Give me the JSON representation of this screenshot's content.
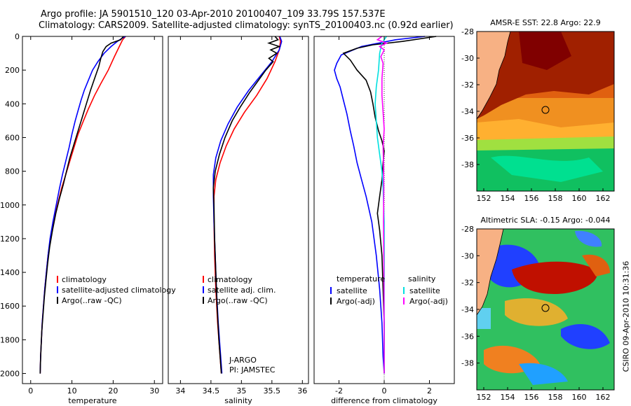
{
  "header": {
    "line1": "Argo profile: JA 5901510_120 03-Apr-2010 20100407_109 33.79S 157.537E",
    "line2": "Climatology: CARS2009. Satellite-adjusted climatology: synTS_20100403.nc (0.92d earlier)"
  },
  "side_label": "CSIRO 09-Apr-2010 10:31:36",
  "chart_data": [
    {
      "id": "temperature",
      "type": "line",
      "xlabel": "temperature",
      "ylabel": "",
      "xlim": [
        -2,
        32
      ],
      "ylim": [
        2060,
        0
      ],
      "xticks": [
        0,
        10,
        20,
        30
      ],
      "yticks": [
        0,
        200,
        400,
        600,
        800,
        1000,
        1200,
        1400,
        1600,
        1800,
        2000
      ],
      "legend": [
        "climatology",
        "satellite-adjusted climatology",
        "Argo(..raw -QC)"
      ],
      "series": [
        {
          "name": "climatology",
          "color": "#ff0000",
          "points": [
            [
              23.0,
              0
            ],
            [
              22.3,
              20
            ],
            [
              21.5,
              60
            ],
            [
              20.3,
              120
            ],
            [
              18.8,
              200
            ],
            [
              17.0,
              280
            ],
            [
              15.5,
              350
            ],
            [
              14.0,
              430
            ],
            [
              12.8,
              500
            ],
            [
              11.5,
              580
            ],
            [
              10.5,
              660
            ],
            [
              9.5,
              740
            ],
            [
              8.5,
              820
            ],
            [
              7.5,
              900
            ],
            [
              6.5,
              1000
            ],
            [
              5.5,
              1100
            ],
            [
              4.8,
              1200
            ],
            [
              4.2,
              1300
            ],
            [
              3.8,
              1400
            ],
            [
              3.4,
              1500
            ],
            [
              3.1,
              1600
            ],
            [
              2.8,
              1700
            ],
            [
              2.6,
              1800
            ],
            [
              2.4,
              1900
            ],
            [
              2.3,
              2000
            ]
          ]
        },
        {
          "name": "satellite-adjusted climatology",
          "color": "#0000ff",
          "points": [
            [
              23.0,
              0
            ],
            [
              22.2,
              10
            ],
            [
              21.0,
              30
            ],
            [
              19.5,
              60
            ],
            [
              17.8,
              100
            ],
            [
              16.3,
              150
            ],
            [
              15.0,
              200
            ],
            [
              14.0,
              260
            ],
            [
              13.0,
              320
            ],
            [
              12.2,
              380
            ],
            [
              11.5,
              440
            ],
            [
              10.8,
              500
            ],
            [
              10.0,
              580
            ],
            [
              9.3,
              660
            ],
            [
              8.5,
              740
            ],
            [
              7.7,
              820
            ],
            [
              7.0,
              900
            ],
            [
              6.2,
              1000
            ],
            [
              5.4,
              1100
            ],
            [
              4.7,
              1200
            ],
            [
              4.2,
              1300
            ],
            [
              3.8,
              1400
            ],
            [
              3.4,
              1500
            ],
            [
              3.1,
              1600
            ],
            [
              2.8,
              1700
            ],
            [
              2.6,
              1800
            ],
            [
              2.4,
              1900
            ],
            [
              2.3,
              2000
            ]
          ]
        },
        {
          "name": "Argo(..raw -QC)",
          "color": "#000000",
          "points": [
            [
              22.5,
              0
            ],
            [
              21.8,
              20
            ],
            [
              19.5,
              40
            ],
            [
              18.3,
              60
            ],
            [
              17.5,
              90
            ],
            [
              17.0,
              130
            ],
            [
              16.5,
              180
            ],
            [
              15.5,
              250
            ],
            [
              14.5,
              320
            ],
            [
              13.5,
              400
            ],
            [
              12.5,
              480
            ],
            [
              11.5,
              560
            ],
            [
              10.5,
              640
            ],
            [
              9.5,
              720
            ],
            [
              8.7,
              800
            ],
            [
              7.9,
              880
            ],
            [
              7.0,
              960
            ],
            [
              6.1,
              1050
            ],
            [
              5.3,
              1150
            ],
            [
              4.6,
              1250
            ],
            [
              4.1,
              1350
            ],
            [
              3.7,
              1450
            ],
            [
              3.3,
              1550
            ],
            [
              3.0,
              1650
            ],
            [
              2.7,
              1750
            ],
            [
              2.5,
              1850
            ],
            [
              2.35,
              1950
            ],
            [
              2.3,
              2000
            ]
          ]
        }
      ]
    },
    {
      "id": "salinity",
      "type": "line",
      "xlabel": "salinity",
      "ylabel": "",
      "xlim": [
        33.8,
        36.1
      ],
      "ylim": [
        2060,
        0
      ],
      "xticks": [
        34,
        34.5,
        35,
        35.5,
        36
      ],
      "yticks": [],
      "legend": [
        "climatology",
        "satellite adj. clim.",
        "Argo(..raw -QC)"
      ],
      "annotations": [
        "J-ARGO",
        "PI: JAMSTEC"
      ],
      "series": [
        {
          "name": "climatology",
          "color": "#ff0000",
          "points": [
            [
              35.62,
              0
            ],
            [
              35.64,
              30
            ],
            [
              35.62,
              80
            ],
            [
              35.55,
              150
            ],
            [
              35.42,
              250
            ],
            [
              35.25,
              350
            ],
            [
              35.05,
              450
            ],
            [
              34.88,
              550
            ],
            [
              34.75,
              650
            ],
            [
              34.65,
              750
            ],
            [
              34.58,
              850
            ],
            [
              34.55,
              950
            ],
            [
              34.55,
              1100
            ],
            [
              34.56,
              1300
            ],
            [
              34.58,
              1500
            ],
            [
              34.61,
              1700
            ],
            [
              34.64,
              1850
            ],
            [
              34.67,
              2000
            ]
          ]
        },
        {
          "name": "satellite adj. clim.",
          "color": "#0000ff",
          "points": [
            [
              35.63,
              0
            ],
            [
              35.66,
              30
            ],
            [
              35.62,
              80
            ],
            [
              35.5,
              150
            ],
            [
              35.32,
              230
            ],
            [
              35.12,
              320
            ],
            [
              34.93,
              420
            ],
            [
              34.78,
              520
            ],
            [
              34.66,
              620
            ],
            [
              34.58,
              720
            ],
            [
              34.54,
              820
            ],
            [
              34.54,
              950
            ],
            [
              34.55,
              1100
            ],
            [
              34.57,
              1300
            ],
            [
              34.59,
              1500
            ],
            [
              34.62,
              1700
            ],
            [
              34.65,
              1850
            ],
            [
              34.68,
              2000
            ]
          ]
        },
        {
          "name": "Argo(..raw -QC)",
          "color": "#000000",
          "points": [
            [
              35.55,
              0
            ],
            [
              35.6,
              20
            ],
            [
              35.45,
              40
            ],
            [
              35.62,
              60
            ],
            [
              35.48,
              80
            ],
            [
              35.58,
              100
            ],
            [
              35.45,
              130
            ],
            [
              35.52,
              150
            ],
            [
              35.4,
              200
            ],
            [
              35.28,
              260
            ],
            [
              35.14,
              330
            ],
            [
              34.98,
              420
            ],
            [
              34.85,
              500
            ],
            [
              34.73,
              600
            ],
            [
              34.64,
              700
            ],
            [
              34.57,
              800
            ],
            [
              34.54,
              900
            ],
            [
              34.55,
              1000
            ],
            [
              34.56,
              1200
            ],
            [
              34.58,
              1400
            ],
            [
              34.6,
              1600
            ],
            [
              34.63,
              1800
            ],
            [
              34.67,
              2000
            ]
          ]
        }
      ]
    },
    {
      "id": "difference",
      "type": "line",
      "xlabel": "difference from climatology",
      "ylabel": "",
      "xlim": [
        -3.1,
        3.1
      ],
      "ylim": [
        2060,
        0
      ],
      "xticks": [
        -2,
        0,
        2
      ],
      "yticks": [],
      "legend_headers": [
        "temperature",
        "salinity"
      ],
      "legend": [
        "satellite",
        "Argo(-adj)",
        "satellite",
        "Argo(-adj)"
      ],
      "series": [
        {
          "name": "temperature satellite",
          "color": "#0000ff",
          "points": [
            [
              1.8,
              0
            ],
            [
              0.5,
              20
            ],
            [
              -1.0,
              60
            ],
            [
              -1.9,
              110
            ],
            [
              -2.1,
              160
            ],
            [
              -2.2,
              200
            ],
            [
              -2.1,
              250
            ],
            [
              -1.95,
              300
            ],
            [
              -1.8,
              380
            ],
            [
              -1.65,
              460
            ],
            [
              -1.5,
              560
            ],
            [
              -1.35,
              650
            ],
            [
              -1.2,
              750
            ],
            [
              -1.0,
              850
            ],
            [
              -0.8,
              950
            ],
            [
              -0.55,
              1100
            ],
            [
              -0.35,
              1300
            ],
            [
              -0.2,
              1500
            ],
            [
              -0.1,
              1700
            ],
            [
              -0.05,
              1900
            ],
            [
              0.0,
              2000
            ]
          ]
        },
        {
          "name": "temperature Argo(-adj)",
          "color": "#000000",
          "points": [
            [
              2.3,
              0
            ],
            [
              0.8,
              30
            ],
            [
              -0.5,
              50
            ],
            [
              -1.2,
              70
            ],
            [
              -1.8,
              100
            ],
            [
              -1.5,
              140
            ],
            [
              -1.2,
              200
            ],
            [
              -0.8,
              260
            ],
            [
              -0.6,
              330
            ],
            [
              -0.5,
              400
            ],
            [
              -0.4,
              480
            ],
            [
              -0.25,
              560
            ],
            [
              -0.1,
              620
            ],
            [
              0.0,
              680
            ],
            [
              -0.05,
              750
            ],
            [
              -0.1,
              850
            ],
            [
              -0.2,
              950
            ],
            [
              -0.3,
              1050
            ],
            [
              -0.2,
              1150
            ],
            [
              -0.1,
              1300
            ],
            [
              -0.05,
              1500
            ],
            [
              0.0,
              1700
            ],
            [
              0.0,
              2000
            ]
          ]
        },
        {
          "name": "salinity satellite",
          "color": "#00e0e0",
          "points": [
            [
              0.1,
              0
            ],
            [
              -0.1,
              40
            ],
            [
              -0.2,
              100
            ],
            [
              -0.25,
              200
            ],
            [
              -0.35,
              300
            ],
            [
              -0.4,
              400
            ],
            [
              -0.35,
              500
            ],
            [
              -0.3,
              600
            ],
            [
              -0.2,
              700
            ],
            [
              -0.1,
              800
            ],
            [
              -0.05,
              900
            ],
            [
              0.0,
              1100
            ],
            [
              0.0,
              1400
            ],
            [
              0.0,
              1700
            ],
            [
              0.0,
              2000
            ]
          ]
        },
        {
          "name": "salinity Argo(-adj)",
          "color": "#ff00ff",
          "points": [
            [
              -0.1,
              0
            ],
            [
              -0.3,
              20
            ],
            [
              0.1,
              40
            ],
            [
              -0.2,
              60
            ],
            [
              0.0,
              80
            ],
            [
              -0.15,
              120
            ],
            [
              -0.05,
              160
            ],
            [
              -0.1,
              250
            ],
            [
              -0.1,
              350
            ],
            [
              -0.05,
              450
            ],
            [
              0.0,
              550
            ],
            [
              -0.05,
              650
            ],
            [
              -0.03,
              750
            ],
            [
              -0.02,
              900
            ],
            [
              -0.03,
              1100
            ],
            [
              -0.02,
              1300
            ],
            [
              -0.01,
              1500
            ],
            [
              0.0,
              2000
            ]
          ]
        }
      ]
    }
  ],
  "maps": [
    {
      "id": "sst",
      "title": "AMSR-E SST: 22.8 Argo: 22.9",
      "yticks": [
        "-28",
        "-30",
        "-32",
        "-34",
        "-36",
        "-38"
      ],
      "xticks": [
        "152",
        "154",
        "156",
        "158",
        "160",
        "162"
      ]
    },
    {
      "id": "sla",
      "title": "Altimetric SLA: -0.15 Argo: -0.044",
      "yticks": [
        "-28",
        "-30",
        "-32",
        "-34",
        "-36",
        "-38"
      ],
      "xticks": [
        "152",
        "154",
        "156",
        "158",
        "160",
        "162"
      ]
    }
  ]
}
